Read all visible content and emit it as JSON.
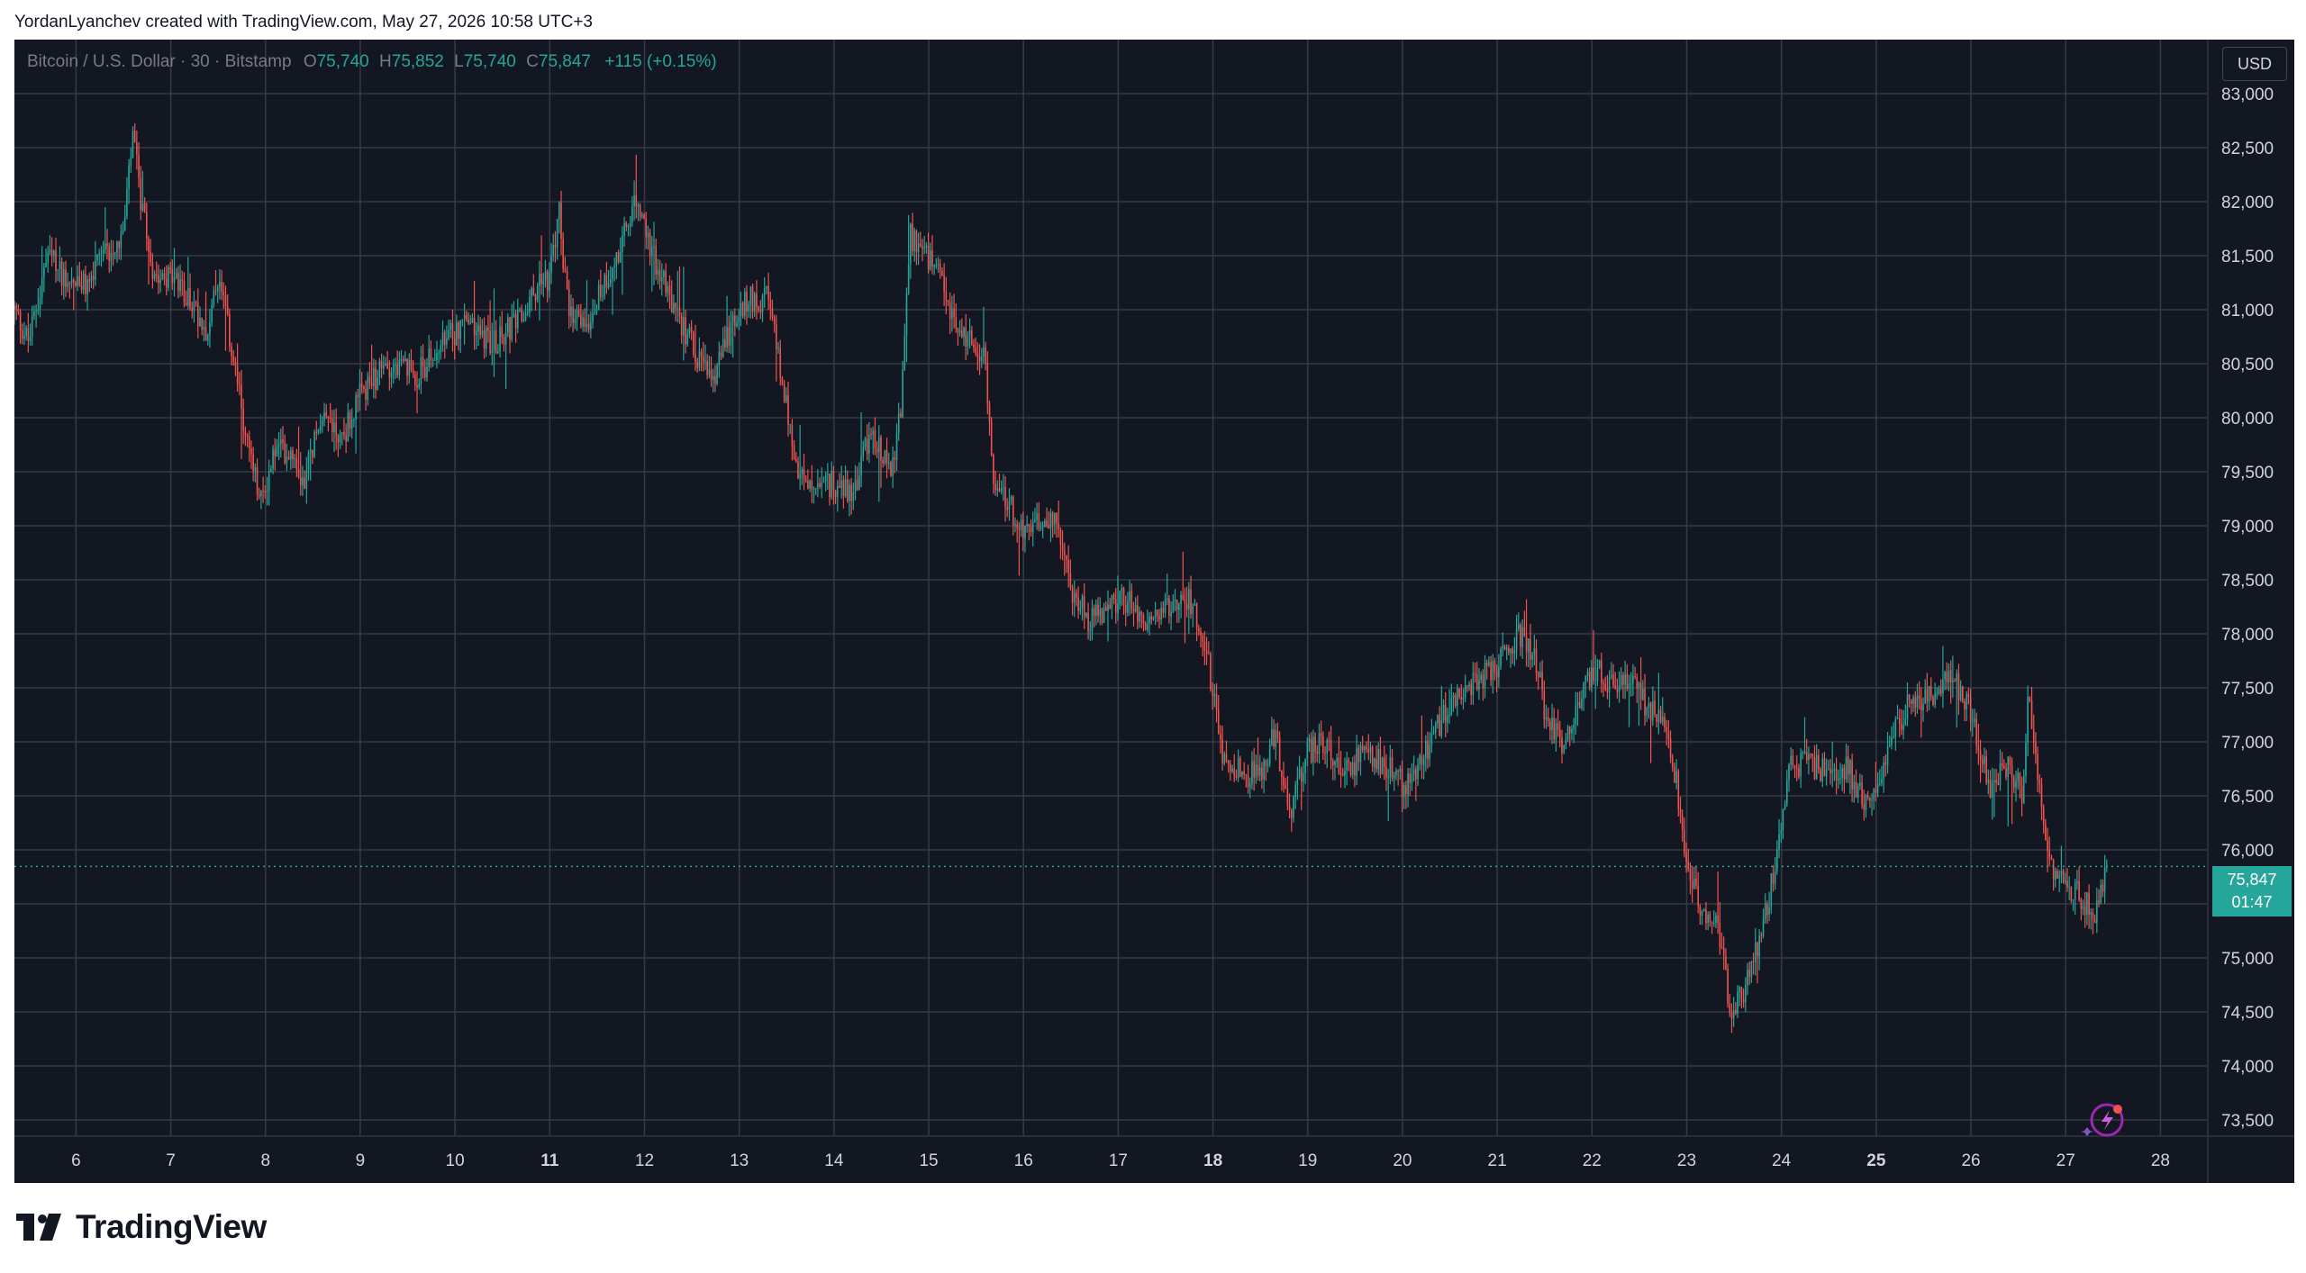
{
  "header": {
    "credit": "YordanLyanchev created with TradingView.com, May 27, 2026 10:58 UTC+3"
  },
  "legend": {
    "symbol": "Bitcoin / U.S. Dollar · 30 · Bitstamp",
    "o_label": "O",
    "o_value": "75,740",
    "h_label": "H",
    "h_value": "75,852",
    "l_label": "L",
    "l_value": "75,740",
    "c_label": "C",
    "c_value": "75,847",
    "change": "+115 (+0.15%)"
  },
  "currency_button": "USD",
  "last_price": {
    "price": "75,847",
    "countdown": "01:47"
  },
  "brand": "TradingView",
  "colors": {
    "background": "#131722",
    "up": "#26a69a",
    "down": "#ef5350",
    "grid": "#363a45"
  },
  "chart_data": {
    "type": "candlestick",
    "title": "Bitcoin / U.S. Dollar · 30 · Bitstamp",
    "ylim": [
      73350,
      83500
    ],
    "y_ticks": [
      "73,500",
      "74,000",
      "74,500",
      "75,000",
      "75,500",
      "76,000",
      "76,500",
      "77,000",
      "77,500",
      "78,000",
      "78,500",
      "79,000",
      "79,500",
      "80,000",
      "80,500",
      "81,000",
      "81,500",
      "82,000",
      "82,500",
      "83,000"
    ],
    "y_tick_values": [
      73500,
      74000,
      74500,
      75000,
      75500,
      76000,
      76500,
      77000,
      77500,
      78000,
      78500,
      79000,
      79500,
      80000,
      80500,
      81000,
      81500,
      82000,
      82500,
      83000
    ],
    "x_ticks": [
      "6",
      "7",
      "8",
      "9",
      "10",
      "11",
      "12",
      "13",
      "14",
      "15",
      "16",
      "17",
      "18",
      "19",
      "20",
      "21",
      "22",
      "23",
      "24",
      "25",
      "26",
      "27",
      "28"
    ],
    "x_tick_values": [
      6,
      7,
      8,
      9,
      10,
      11,
      12,
      13,
      14,
      15,
      16,
      17,
      18,
      19,
      20,
      21,
      22,
      23,
      24,
      25,
      26,
      27,
      28
    ],
    "bold_ticks": [
      "11",
      "18",
      "25"
    ],
    "xlim": [
      5.35,
      28.5
    ],
    "grid": true,
    "last_close": 75847,
    "close_series": {
      "note_unit": "USD, approximate path of closing prices by day-of-month",
      "points": [
        [
          5.35,
          81000
        ],
        [
          5.5,
          80700
        ],
        [
          5.7,
          81500
        ],
        [
          5.9,
          81300
        ],
        [
          6.1,
          81200
        ],
        [
          6.3,
          81500
        ],
        [
          6.5,
          81700
        ],
        [
          6.6,
          82600
        ],
        [
          6.7,
          81900
        ],
        [
          6.8,
          81400
        ],
        [
          7.0,
          81300
        ],
        [
          7.2,
          81100
        ],
        [
          7.4,
          80800
        ],
        [
          7.5,
          81300
        ],
        [
          7.65,
          80600
        ],
        [
          7.8,
          79800
        ],
        [
          7.95,
          79200
        ],
        [
          8.1,
          79700
        ],
        [
          8.3,
          79700
        ],
        [
          8.4,
          79400
        ],
        [
          8.6,
          80100
        ],
        [
          8.8,
          79800
        ],
        [
          9.0,
          80200
        ],
        [
          9.3,
          80500
        ],
        [
          9.6,
          80400
        ],
        [
          9.9,
          80700
        ],
        [
          10.1,
          80900
        ],
        [
          10.4,
          80700
        ],
        [
          10.7,
          80900
        ],
        [
          10.9,
          81300
        ],
        [
          11.0,
          81300
        ],
        [
          11.1,
          81900
        ],
        [
          11.2,
          80900
        ],
        [
          11.4,
          80900
        ],
        [
          11.6,
          81300
        ],
        [
          11.8,
          81700
        ],
        [
          11.9,
          82000
        ],
        [
          12.1,
          81500
        ],
        [
          12.3,
          81000
        ],
        [
          12.5,
          80700
        ],
        [
          12.7,
          80300
        ],
        [
          12.9,
          80800
        ],
        [
          13.1,
          81100
        ],
        [
          13.3,
          81100
        ],
        [
          13.45,
          80400
        ],
        [
          13.6,
          79500
        ],
        [
          13.8,
          79300
        ],
        [
          14.0,
          79400
        ],
        [
          14.2,
          79300
        ],
        [
          14.4,
          79900
        ],
        [
          14.6,
          79500
        ],
        [
          14.7,
          80000
        ],
        [
          14.8,
          81700
        ],
        [
          14.9,
          81600
        ],
        [
          15.1,
          81300
        ],
        [
          15.3,
          80800
        ],
        [
          15.5,
          80700
        ],
        [
          15.6,
          80500
        ],
        [
          15.7,
          79200
        ],
        [
          15.8,
          79300
        ],
        [
          16.0,
          78900
        ],
        [
          16.3,
          79100
        ],
        [
          16.5,
          78400
        ],
        [
          16.7,
          78100
        ],
        [
          16.9,
          78300
        ],
        [
          17.1,
          78300
        ],
        [
          17.3,
          78100
        ],
        [
          17.5,
          78200
        ],
        [
          17.7,
          78400
        ],
        [
          17.9,
          78000
        ],
        [
          18.1,
          76900
        ],
        [
          18.3,
          76700
        ],
        [
          18.5,
          76700
        ],
        [
          18.65,
          77100
        ],
        [
          18.8,
          76300
        ],
        [
          19.0,
          76900
        ],
        [
          19.2,
          77000
        ],
        [
          19.4,
          76700
        ],
        [
          19.6,
          76900
        ],
        [
          19.8,
          76800
        ],
        [
          20.0,
          76600
        ],
        [
          20.2,
          76800
        ],
        [
          20.4,
          77200
        ],
        [
          20.6,
          77400
        ],
        [
          20.8,
          77600
        ],
        [
          21.0,
          77700
        ],
        [
          21.2,
          78000
        ],
        [
          21.4,
          77800
        ],
        [
          21.5,
          77300
        ],
        [
          21.7,
          77000
        ],
        [
          21.9,
          77400
        ],
        [
          22.0,
          77700
        ],
        [
          22.2,
          77500
        ],
        [
          22.4,
          77600
        ],
        [
          22.6,
          77300
        ],
        [
          22.8,
          77100
        ],
        [
          22.9,
          76600
        ],
        [
          23.0,
          75800
        ],
        [
          23.2,
          75400
        ],
        [
          23.3,
          75300
        ],
        [
          23.4,
          75100
        ],
        [
          23.45,
          74500
        ],
        [
          23.6,
          74700
        ],
        [
          23.8,
          75300
        ],
        [
          23.95,
          75900
        ],
        [
          24.1,
          76800
        ],
        [
          24.3,
          76800
        ],
        [
          24.5,
          76700
        ],
        [
          24.7,
          76800
        ],
        [
          24.8,
          76500
        ],
        [
          25.0,
          76500
        ],
        [
          25.1,
          76900
        ],
        [
          25.3,
          77300
        ],
        [
          25.5,
          77400
        ],
        [
          25.6,
          77400
        ],
        [
          25.8,
          77600
        ],
        [
          26.0,
          77300
        ],
        [
          26.1,
          76900
        ],
        [
          26.2,
          76600
        ],
        [
          26.4,
          76800
        ],
        [
          26.55,
          76500
        ],
        [
          26.6,
          77500
        ],
        [
          26.7,
          76800
        ],
        [
          26.8,
          75900
        ],
        [
          26.95,
          75800
        ],
        [
          27.1,
          75600
        ],
        [
          27.3,
          75400
        ],
        [
          27.45,
          75847
        ]
      ]
    }
  }
}
